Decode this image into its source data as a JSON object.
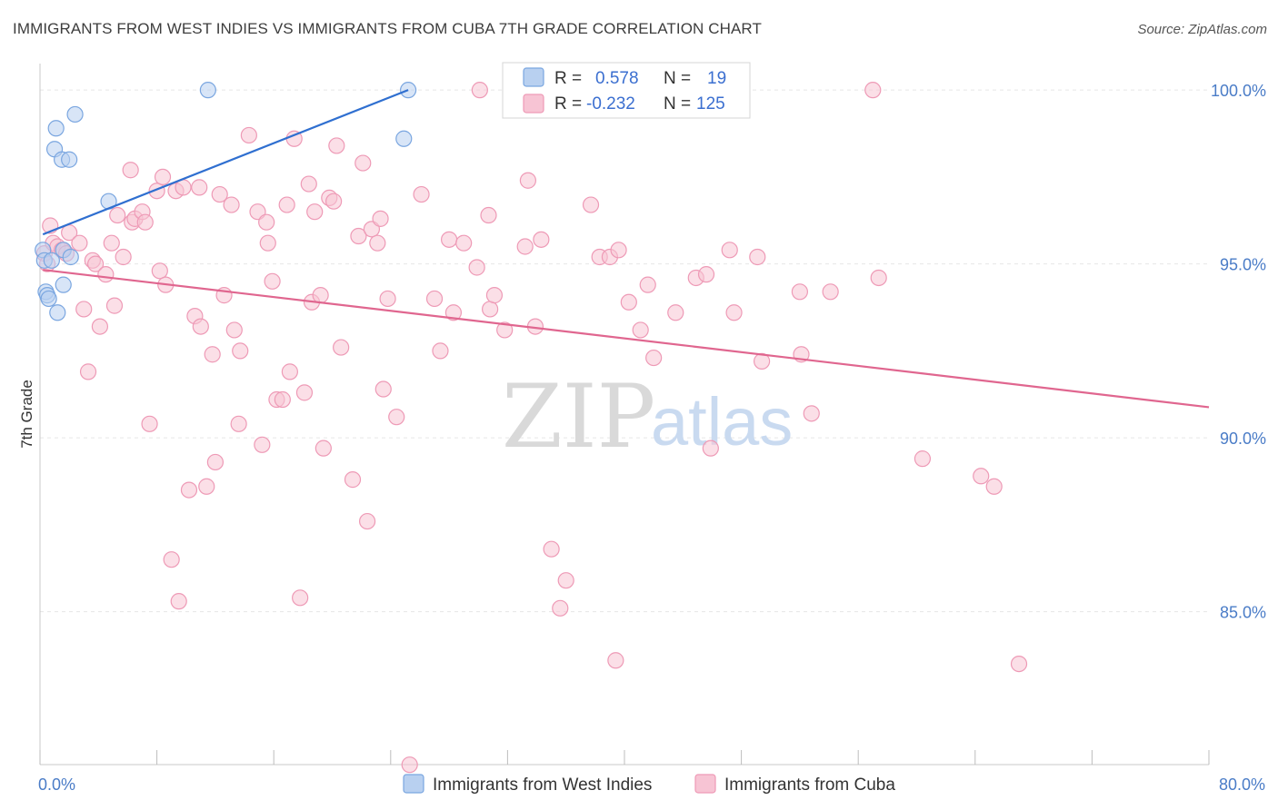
{
  "header": {
    "title": "IMMIGRANTS FROM WEST INDIES VS IMMIGRANTS FROM CUBA 7TH GRADE CORRELATION CHART",
    "source": "Source: ZipAtlas.com"
  },
  "watermark": {
    "zip": "ZIP",
    "atlas": "atlas"
  },
  "legend": {
    "rows": [
      {
        "r_label": "R =",
        "r_value": "0.578",
        "n_label": "N =",
        "n_value": "19"
      },
      {
        "r_label": "R =",
        "r_value": "-0.232",
        "n_label": "N =",
        "n_value": "125"
      }
    ]
  },
  "bottom_legend": {
    "items": [
      {
        "label": "Immigrants from West Indies"
      },
      {
        "label": "Immigrants from Cuba"
      }
    ]
  },
  "colors": {
    "blue_fill": "#b8d0f0",
    "blue_stroke": "#7aa6e0",
    "blue_line": "#2f6fd0",
    "pink_fill": "#f7c4d4",
    "pink_stroke": "#ee9ab6",
    "pink_line": "#e0668f"
  },
  "chart_data": {
    "type": "scatter",
    "xlabel": "",
    "ylabel": "7th Grade",
    "xlim": [
      0,
      80
    ],
    "ylim": [
      80.5,
      100.5
    ],
    "x_tick_labels": [
      "0.0%",
      "80.0%"
    ],
    "y_ticks": [
      85,
      90,
      95,
      100
    ],
    "y_tick_labels": [
      "85.0%",
      "90.0%",
      "95.0%",
      "100.0%"
    ],
    "grid": true,
    "legend_position": "top-center",
    "series": [
      {
        "name": "Immigrants from West Indies",
        "trend": [
          [
            0.2,
            95.85
          ],
          [
            25.2,
            100.0
          ]
        ],
        "points": [
          [
            0.2,
            95.4
          ],
          [
            0.3,
            95.1
          ],
          [
            0.4,
            94.2
          ],
          [
            0.5,
            94.1
          ],
          [
            0.6,
            94.0
          ],
          [
            0.8,
            95.1
          ],
          [
            1.0,
            98.3
          ],
          [
            1.1,
            98.9
          ],
          [
            1.2,
            93.6
          ],
          [
            1.5,
            98.0
          ],
          [
            1.6,
            94.4
          ],
          [
            1.6,
            95.4
          ],
          [
            2.0,
            98.0
          ],
          [
            2.1,
            95.2
          ],
          [
            2.4,
            99.3
          ],
          [
            4.7,
            96.8
          ],
          [
            11.5,
            100.0
          ],
          [
            24.9,
            98.6
          ],
          [
            25.2,
            100.0
          ]
        ]
      },
      {
        "name": "Immigrants from Cuba",
        "trend": [
          [
            0.2,
            94.83
          ],
          [
            80.0,
            90.88
          ]
        ],
        "points": [
          [
            0.3,
            95.3
          ],
          [
            0.5,
            95.0
          ],
          [
            0.7,
            96.1
          ],
          [
            0.9,
            95.6
          ],
          [
            1.2,
            95.5
          ],
          [
            1.5,
            95.4
          ],
          [
            1.8,
            95.3
          ],
          [
            2.0,
            95.9
          ],
          [
            2.7,
            95.6
          ],
          [
            3.0,
            93.7
          ],
          [
            3.3,
            91.9
          ],
          [
            3.6,
            95.1
          ],
          [
            3.8,
            95.0
          ],
          [
            4.1,
            93.2
          ],
          [
            4.5,
            94.7
          ],
          [
            4.9,
            95.6
          ],
          [
            5.1,
            93.8
          ],
          [
            5.3,
            96.4
          ],
          [
            5.7,
            95.2
          ],
          [
            6.2,
            97.7
          ],
          [
            6.3,
            96.2
          ],
          [
            6.5,
            96.3
          ],
          [
            7.0,
            96.5
          ],
          [
            7.2,
            96.2
          ],
          [
            7.5,
            90.4
          ],
          [
            8.0,
            97.1
          ],
          [
            8.2,
            94.8
          ],
          [
            8.4,
            97.5
          ],
          [
            8.6,
            94.4
          ],
          [
            9.0,
            86.5
          ],
          [
            9.3,
            97.1
          ],
          [
            9.5,
            85.3
          ],
          [
            9.8,
            97.2
          ],
          [
            10.2,
            88.5
          ],
          [
            10.6,
            93.5
          ],
          [
            10.9,
            97.2
          ],
          [
            11.0,
            93.2
          ],
          [
            11.4,
            88.6
          ],
          [
            11.8,
            92.4
          ],
          [
            12.0,
            89.3
          ],
          [
            12.3,
            97.0
          ],
          [
            12.6,
            94.1
          ],
          [
            13.1,
            96.7
          ],
          [
            13.3,
            93.1
          ],
          [
            13.6,
            90.4
          ],
          [
            13.7,
            92.5
          ],
          [
            14.3,
            98.7
          ],
          [
            14.9,
            96.5
          ],
          [
            15.2,
            89.8
          ],
          [
            15.5,
            96.2
          ],
          [
            15.6,
            95.6
          ],
          [
            15.9,
            94.5
          ],
          [
            16.2,
            91.1
          ],
          [
            16.6,
            91.1
          ],
          [
            16.9,
            96.7
          ],
          [
            17.1,
            91.9
          ],
          [
            17.4,
            98.6
          ],
          [
            17.8,
            85.4
          ],
          [
            18.1,
            91.3
          ],
          [
            18.4,
            97.3
          ],
          [
            18.6,
            93.9
          ],
          [
            18.8,
            96.5
          ],
          [
            19.2,
            94.1
          ],
          [
            19.4,
            89.7
          ],
          [
            19.8,
            96.9
          ],
          [
            20.1,
            96.8
          ],
          [
            20.3,
            98.4
          ],
          [
            20.6,
            92.6
          ],
          [
            21.4,
            88.8
          ],
          [
            21.8,
            95.8
          ],
          [
            22.1,
            97.9
          ],
          [
            22.4,
            87.6
          ],
          [
            22.7,
            96.0
          ],
          [
            23.1,
            95.6
          ],
          [
            23.3,
            96.3
          ],
          [
            23.5,
            91.4
          ],
          [
            23.8,
            94.0
          ],
          [
            24.4,
            90.6
          ],
          [
            25.3,
            80.6
          ],
          [
            26.1,
            97.0
          ],
          [
            27.0,
            94.0
          ],
          [
            27.4,
            92.5
          ],
          [
            28.0,
            95.7
          ],
          [
            28.3,
            93.6
          ],
          [
            29.0,
            95.6
          ],
          [
            29.9,
            94.9
          ],
          [
            30.1,
            100.0
          ],
          [
            30.7,
            96.4
          ],
          [
            30.8,
            93.7
          ],
          [
            31.1,
            94.1
          ],
          [
            31.8,
            93.1
          ],
          [
            33.2,
            95.5
          ],
          [
            33.4,
            97.4
          ],
          [
            33.9,
            93.2
          ],
          [
            34.3,
            95.7
          ],
          [
            35.0,
            86.8
          ],
          [
            35.6,
            85.1
          ],
          [
            36.0,
            85.9
          ],
          [
            37.7,
            96.7
          ],
          [
            38.3,
            95.2
          ],
          [
            39.0,
            95.2
          ],
          [
            39.4,
            83.6
          ],
          [
            39.6,
            95.4
          ],
          [
            40.3,
            93.9
          ],
          [
            41.1,
            93.1
          ],
          [
            41.6,
            94.4
          ],
          [
            42.0,
            92.3
          ],
          [
            43.5,
            93.6
          ],
          [
            44.9,
            94.6
          ],
          [
            45.6,
            94.7
          ],
          [
            45.9,
            89.7
          ],
          [
            47.2,
            95.4
          ],
          [
            47.5,
            93.6
          ],
          [
            49.1,
            95.2
          ],
          [
            49.4,
            92.2
          ],
          [
            52.0,
            94.2
          ],
          [
            52.1,
            92.4
          ],
          [
            52.8,
            90.7
          ],
          [
            54.1,
            94.2
          ],
          [
            57.0,
            100.0
          ],
          [
            57.4,
            94.6
          ],
          [
            60.4,
            89.4
          ],
          [
            64.4,
            88.9
          ],
          [
            65.3,
            88.6
          ],
          [
            67.0,
            83.5
          ]
        ]
      }
    ]
  }
}
